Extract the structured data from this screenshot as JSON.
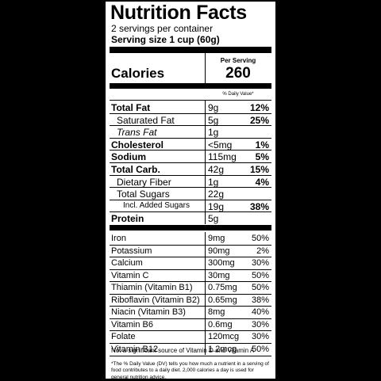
{
  "header": {
    "title": "Nutrition Facts",
    "servings": "2 servings per container",
    "serving_size": "Serving size 1 cup (60g)"
  },
  "calories": {
    "per_serving_label": "Per Serving",
    "label": "Calories",
    "value": "260"
  },
  "dv_header": "% Daily Value*",
  "nutrients": [
    [
      "Total Fat",
      "9g",
      "12%"
    ],
    [
      "Saturated Fat",
      "5g",
      "25%"
    ],
    [
      "Trans Fat",
      "1g"
    ],
    [
      "Cholesterol",
      "<5mg",
      "1%"
    ],
    [
      "Sodium",
      "115mg",
      "5%"
    ],
    [
      "Total Carb.",
      "42g",
      "15%"
    ],
    [
      "Dietary Fiber",
      "1g",
      "4%"
    ],
    [
      "Total Sugars",
      "22g"
    ],
    [
      "Incl. Added Sugars",
      "19g",
      "38%"
    ],
    [
      "Protein",
      "5g"
    ]
  ],
  "vitamins": [
    [
      "Iron",
      "9mg",
      "50%"
    ],
    [
      "Potassium",
      "90mg",
      "2%"
    ],
    [
      "Calcium",
      "300mg",
      "30%"
    ],
    [
      "Vitamin C",
      "30mg",
      "50%"
    ],
    [
      "Thiamin (Vitamin B1)",
      "0.75mg",
      "50%"
    ],
    [
      "Riboflavin (Vitamin B2)",
      "0.65mg",
      "38%"
    ],
    [
      "Niacin (Vitamin B3)",
      "8mg",
      "40%"
    ],
    [
      "Vitamin B6",
      "0.6mg",
      "30%"
    ],
    [
      "Folate",
      "120mcg",
      "30%"
    ],
    [
      "Vitamin B12",
      "1.2mcg",
      "50%"
    ]
  ],
  "note": "Not a significant source of Vitamin D and Vitamin A",
  "footnote": "*The % Daily Value (DV) tells you how much a nutrient in a serving of food contributes to a daily diet. 2,000 calories a day is used for general nutrition advice."
}
